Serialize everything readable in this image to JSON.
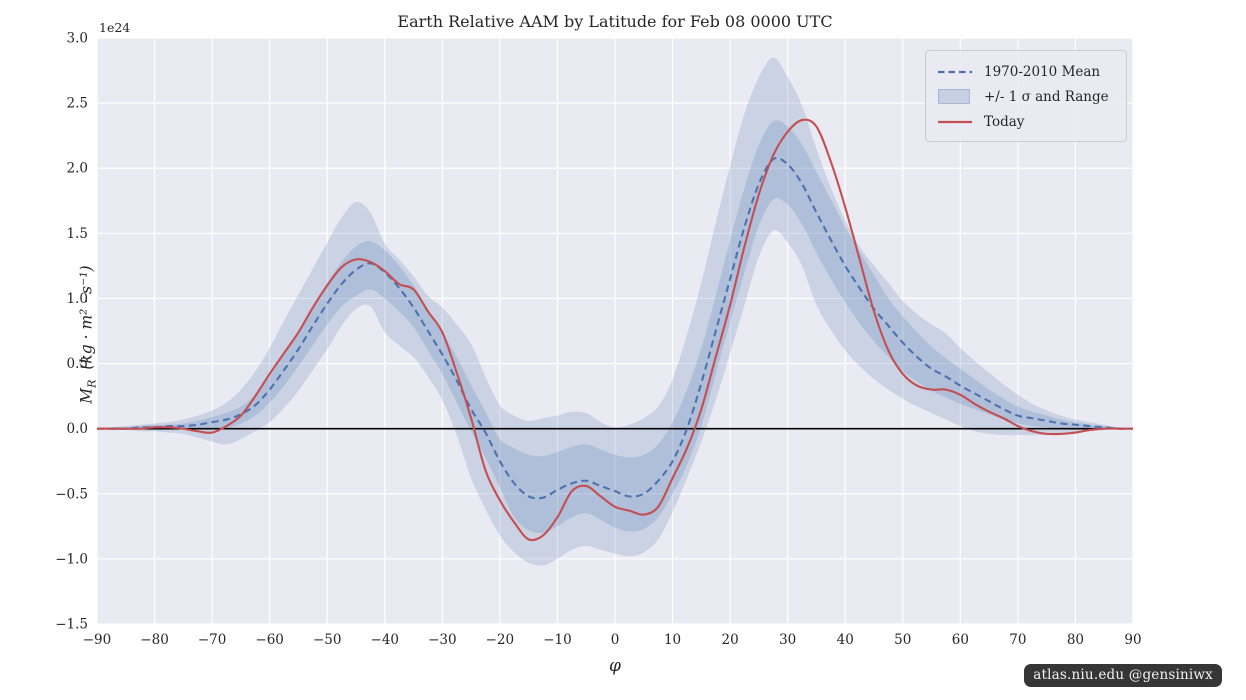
{
  "title": "Earth Relative AAM by Latitude for Feb 08 0000 UTC",
  "watermark": "atlas.niu.edu  @gensiniwx",
  "axes": {
    "x_label": "φ",
    "y_offset_label": "1e24",
    "y_label": {
      "symbol": "M",
      "subscript": "R",
      "units": "(kg · m² · s⁻¹)"
    }
  },
  "legend": {
    "items": [
      {
        "label": "1970-2010 Mean",
        "sample": "dashed-line",
        "color": "#4c72b0"
      },
      {
        "label": "+/- 1 σ and Range",
        "sample": "band-patch",
        "color": "#c6d0e2"
      },
      {
        "label": "Today",
        "sample": "solid-line",
        "color": "#c44e52"
      }
    ]
  },
  "colors": {
    "plot_background": "#eaeaf2",
    "grid": "#ffffff",
    "mean_line": "#4c72b0",
    "today_line": "#c44e52",
    "band_fill": "rgba(76,114,176,0.20)",
    "zero_line": "#000000",
    "tick_text": "#262626"
  },
  "chart_data": {
    "type": "line",
    "title": "Earth Relative AAM by Latitude for Feb 08 0000 UTC",
    "xlabel": "φ",
    "ylabel": "M_R (kg · m² · s⁻¹)",
    "y_scale_offset": "1e24",
    "xlim": [
      -90,
      90
    ],
    "ylim": [
      -1.5,
      3.0
    ],
    "grid": true,
    "legend_position": "upper right",
    "x_tick_vals": [
      -90,
      -80,
      -70,
      -60,
      -50,
      -40,
      -30,
      -20,
      -10,
      0,
      10,
      20,
      30,
      40,
      50,
      60,
      70,
      80,
      90
    ],
    "x_tick_labels": [
      "−90",
      "−80",
      "−70",
      "−60",
      "−50",
      "−40",
      "−30",
      "−20",
      "−10",
      "0",
      "10",
      "20",
      "30",
      "40",
      "50",
      "60",
      "70",
      "80",
      "90"
    ],
    "y_tick_vals": [
      -1.5,
      -1.0,
      -0.5,
      0.0,
      0.5,
      1.0,
      1.5,
      2.0,
      2.5,
      3.0
    ],
    "y_tick_labels": [
      "−1.5",
      "−1.0",
      "−0.5",
      "0.0",
      "0.5",
      "1.0",
      "1.5",
      "2.0",
      "2.5",
      "3.0"
    ],
    "x": [
      -90,
      -87.5,
      -85,
      -82.5,
      -80,
      -77.5,
      -75,
      -72.5,
      -70,
      -67.5,
      -65,
      -62.5,
      -60,
      -57.5,
      -55,
      -52.5,
      -50,
      -47.5,
      -45,
      -42.5,
      -40,
      -37.5,
      -35,
      -32.5,
      -30,
      -27.5,
      -25,
      -22.5,
      -20,
      -17.5,
      -15,
      -12.5,
      -10,
      -7.5,
      -5,
      -2.5,
      0,
      2.5,
      5,
      7.5,
      10,
      12.5,
      15,
      17.5,
      20,
      22.5,
      25,
      27.5,
      30,
      32.5,
      35,
      37.5,
      40,
      42.5,
      45,
      47.5,
      50,
      52.5,
      55,
      57.5,
      60,
      62.5,
      65,
      67.5,
      70,
      72.5,
      75,
      77.5,
      80,
      82.5,
      85,
      87.5,
      90
    ],
    "series": [
      {
        "name": "1970-2010 Mean",
        "style": "dashed",
        "color": "#4c72b0",
        "values": [
          0,
          0,
          0,
          0.01,
          0.01,
          0.02,
          0.02,
          0.03,
          0.05,
          0.07,
          0.11,
          0.18,
          0.3,
          0.45,
          0.61,
          0.79,
          0.96,
          1.11,
          1.22,
          1.27,
          1.2,
          1.08,
          0.93,
          0.75,
          0.57,
          0.37,
          0.15,
          -0.03,
          -0.25,
          -0.42,
          -0.52,
          -0.53,
          -0.47,
          -0.42,
          -0.4,
          -0.44,
          -0.48,
          -0.52,
          -0.5,
          -0.4,
          -0.25,
          0.0,
          0.35,
          0.75,
          1.15,
          1.55,
          1.88,
          2.07,
          2.03,
          1.88,
          1.66,
          1.45,
          1.25,
          1.08,
          0.92,
          0.79,
          0.66,
          0.55,
          0.46,
          0.4,
          0.33,
          0.27,
          0.21,
          0.15,
          0.1,
          0.08,
          0.06,
          0.04,
          0.03,
          0.02,
          0.01,
          0,
          0
        ]
      },
      {
        "name": "Today",
        "style": "solid",
        "color": "#c44e52",
        "values": [
          0,
          0,
          0,
          0,
          0.01,
          0.01,
          0,
          -0.02,
          -0.03,
          0.02,
          0.1,
          0.25,
          0.42,
          0.58,
          0.74,
          0.93,
          1.1,
          1.24,
          1.3,
          1.28,
          1.21,
          1.11,
          1.07,
          0.9,
          0.74,
          0.43,
          0.08,
          -0.32,
          -0.55,
          -0.72,
          -0.85,
          -0.82,
          -0.68,
          -0.48,
          -0.44,
          -0.52,
          -0.6,
          -0.63,
          -0.66,
          -0.6,
          -0.38,
          -0.15,
          0.15,
          0.55,
          0.95,
          1.4,
          1.8,
          2.1,
          2.28,
          2.37,
          2.32,
          2.05,
          1.7,
          1.3,
          0.9,
          0.6,
          0.42,
          0.33,
          0.3,
          0.3,
          0.26,
          0.19,
          0.13,
          0.08,
          0.02,
          -0.02,
          -0.04,
          -0.04,
          -0.03,
          -0.01,
          0,
          0,
          0
        ]
      },
      {
        "name": "+/- 1 sigma",
        "type": "band",
        "upper": [
          0,
          0.01,
          0.01,
          0.02,
          0.03,
          0.03,
          0.04,
          0.06,
          0.09,
          0.12,
          0.17,
          0.26,
          0.4,
          0.57,
          0.74,
          0.93,
          1.12,
          1.28,
          1.4,
          1.44,
          1.37,
          1.25,
          1.1,
          0.92,
          0.74,
          0.55,
          0.33,
          0.13,
          -0.08,
          -0.15,
          -0.2,
          -0.21,
          -0.18,
          -0.14,
          -0.12,
          -0.16,
          -0.2,
          -0.22,
          -0.2,
          -0.12,
          0.05,
          0.3,
          0.62,
          1.02,
          1.45,
          1.85,
          2.18,
          2.36,
          2.32,
          2.18,
          1.97,
          1.76,
          1.55,
          1.36,
          1.18,
          1.0,
          0.86,
          0.74,
          0.63,
          0.54,
          0.46,
          0.38,
          0.3,
          0.23,
          0.17,
          0.13,
          0.1,
          0.07,
          0.05,
          0.03,
          0.02,
          0.01,
          0
        ],
        "lower": [
          0,
          -0.01,
          -0.01,
          -0.01,
          -0.01,
          -0.01,
          -0.01,
          -0.01,
          -0.01,
          0,
          0.04,
          0.1,
          0.2,
          0.33,
          0.48,
          0.64,
          0.8,
          0.94,
          1.02,
          1.07,
          1.0,
          0.9,
          0.78,
          0.6,
          0.42,
          0.2,
          -0.02,
          -0.22,
          -0.45,
          -0.68,
          -0.78,
          -0.8,
          -0.75,
          -0.68,
          -0.65,
          -0.7,
          -0.76,
          -0.79,
          -0.77,
          -0.68,
          -0.5,
          -0.28,
          0.02,
          0.42,
          0.82,
          1.2,
          1.56,
          1.76,
          1.72,
          1.57,
          1.35,
          1.15,
          0.97,
          0.81,
          0.67,
          0.55,
          0.44,
          0.36,
          0.29,
          0.24,
          0.19,
          0.15,
          0.11,
          0.07,
          0.04,
          0.02,
          0.01,
          0,
          -0.01,
          -0.01,
          0,
          0,
          0
        ]
      },
      {
        "name": "Range",
        "type": "band",
        "upper": [
          0,
          0.01,
          0.02,
          0.03,
          0.04,
          0.05,
          0.07,
          0.1,
          0.14,
          0.2,
          0.3,
          0.44,
          0.62,
          0.83,
          1.03,
          1.23,
          1.43,
          1.62,
          1.74,
          1.66,
          1.42,
          1.3,
          1.17,
          1.02,
          0.93,
          0.8,
          0.65,
          0.4,
          0.18,
          0.1,
          0.06,
          0.08,
          0.1,
          0.13,
          0.12,
          0.05,
          0.01,
          0.03,
          0.08,
          0.17,
          0.38,
          0.72,
          1.12,
          1.58,
          2.02,
          2.42,
          2.7,
          2.85,
          2.7,
          2.48,
          2.15,
          1.85,
          1.6,
          1.4,
          1.25,
          1.12,
          0.98,
          0.88,
          0.8,
          0.73,
          0.62,
          0.52,
          0.43,
          0.34,
          0.26,
          0.19,
          0.14,
          0.1,
          0.07,
          0.05,
          0.03,
          0.01,
          0
        ],
        "lower": [
          0,
          -0.01,
          -0.01,
          -0.02,
          -0.02,
          -0.03,
          -0.04,
          -0.07,
          -0.1,
          -0.12,
          -0.08,
          -0.02,
          0.05,
          0.16,
          0.29,
          0.45,
          0.61,
          0.79,
          0.92,
          0.94,
          0.74,
          0.64,
          0.55,
          0.4,
          0.22,
          -0.05,
          -0.38,
          -0.62,
          -0.82,
          -0.95,
          -1.03,
          -1.05,
          -1.0,
          -0.93,
          -0.9,
          -0.93,
          -0.96,
          -0.98,
          -0.95,
          -0.85,
          -0.64,
          -0.38,
          -0.1,
          0.22,
          0.58,
          0.95,
          1.32,
          1.52,
          1.43,
          1.25,
          0.95,
          0.76,
          0.6,
          0.48,
          0.38,
          0.3,
          0.23,
          0.17,
          0.12,
          0.07,
          0.02,
          -0.02,
          -0.04,
          -0.05,
          -0.05,
          -0.05,
          -0.05,
          -0.04,
          -0.03,
          -0.02,
          -0.01,
          0,
          0
        ]
      }
    ]
  }
}
